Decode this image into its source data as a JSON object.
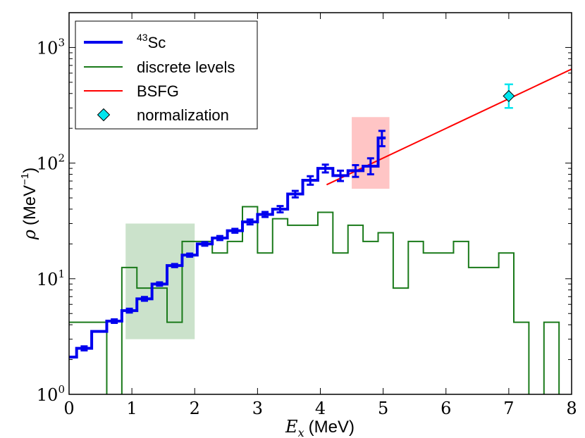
{
  "chart_data": {
    "type": "step",
    "xlabel": {
      "symbol": "E",
      "subscript": "x",
      "unit": "(MeV)"
    },
    "ylabel": {
      "symbol": "ρ",
      "unit_prefix": "(MeV",
      "unit_exp": "−1",
      "unit_suffix": ")"
    },
    "xlim": [
      0,
      8
    ],
    "ylim": [
      1,
      2000
    ],
    "yscale": "log",
    "xticks": [
      "0",
      "1",
      "2",
      "3",
      "4",
      "5",
      "6",
      "7",
      "8"
    ],
    "yticks": [
      {
        "value": 1,
        "base": "10",
        "exp": "0"
      },
      {
        "value": 10,
        "base": "10",
        "exp": "1"
      },
      {
        "value": 100,
        "base": "10",
        "exp": "2"
      },
      {
        "value": 1000,
        "base": "10",
        "exp": "3"
      }
    ],
    "legend": {
      "location": "top-left",
      "entries": [
        {
          "key": "sc43",
          "mass": "43",
          "label": "Sc",
          "color": "#0000ee"
        },
        {
          "key": "discrete",
          "label": "discrete levels",
          "color": "#1a7a1a"
        },
        {
          "key": "bsfg",
          "label": "BSFG",
          "color": "#ff0000"
        },
        {
          "key": "norm",
          "label": "normalization",
          "color": "#00e5ee"
        }
      ]
    },
    "shaded_regions": [
      {
        "name": "lower-normalization-region",
        "x": [
          0.9,
          2.0
        ],
        "y": [
          3,
          30
        ],
        "color": "#2e8b2e",
        "opacity": 0.25
      },
      {
        "name": "upper-normalization-region",
        "x": [
          4.5,
          5.1
        ],
        "y": [
          60,
          250
        ],
        "color": "#ff4040",
        "opacity": 0.3
      }
    ],
    "series": [
      {
        "name": "43Sc",
        "color": "#0000ee",
        "steps": [
          {
            "x0": 0.0,
            "x1": 0.12,
            "y": 2.1
          },
          {
            "x0": 0.12,
            "x1": 0.36,
            "y": 2.5
          },
          {
            "x0": 0.36,
            "x1": 0.6,
            "y": 3.5
          },
          {
            "x0": 0.6,
            "x1": 0.84,
            "y": 4.3
          },
          {
            "x0": 0.84,
            "x1": 1.08,
            "y": 5.3
          },
          {
            "x0": 1.08,
            "x1": 1.32,
            "y": 6.7
          },
          {
            "x0": 1.32,
            "x1": 1.56,
            "y": 9.0
          },
          {
            "x0": 1.56,
            "x1": 1.8,
            "y": 13.0
          },
          {
            "x0": 1.8,
            "x1": 2.04,
            "y": 16.0
          },
          {
            "x0": 2.04,
            "x1": 2.28,
            "y": 20.0
          },
          {
            "x0": 2.28,
            "x1": 2.52,
            "y": 22.5
          },
          {
            "x0": 2.52,
            "x1": 2.76,
            "y": 26.0
          },
          {
            "x0": 2.76,
            "x1": 3.0,
            "y": 31.0
          },
          {
            "x0": 3.0,
            "x1": 3.24,
            "y": 36.0
          },
          {
            "x0": 3.24,
            "x1": 3.48,
            "y": 40.0
          },
          {
            "x0": 3.48,
            "x1": 3.72,
            "y": 54.0
          },
          {
            "x0": 3.72,
            "x1": 3.96,
            "y": 71.0
          },
          {
            "x0": 3.96,
            "x1": 4.2,
            "y": 90.0
          },
          {
            "x0": 4.2,
            "x1": 4.44,
            "y": 78.0
          },
          {
            "x0": 4.44,
            "x1": 4.68,
            "y": 86.0
          },
          {
            "x0": 4.68,
            "x1": 4.92,
            "y": 94.0
          },
          {
            "x0": 4.92,
            "x1": 5.04,
            "y": 165.0
          }
        ],
        "errorbars": [
          {
            "x": 0.24,
            "y": 2.5,
            "lo": 2.4,
            "hi": 2.6
          },
          {
            "x": 0.72,
            "y": 4.3,
            "lo": 4.15,
            "hi": 4.45
          },
          {
            "x": 0.96,
            "y": 5.3,
            "lo": 5.1,
            "hi": 5.5
          },
          {
            "x": 1.2,
            "y": 6.7,
            "lo": 6.45,
            "hi": 6.95
          },
          {
            "x": 1.44,
            "y": 9.0,
            "lo": 8.7,
            "hi": 9.3
          },
          {
            "x": 1.68,
            "y": 13.0,
            "lo": 12.6,
            "hi": 13.4
          },
          {
            "x": 1.92,
            "y": 16.0,
            "lo": 15.5,
            "hi": 16.5
          },
          {
            "x": 2.16,
            "y": 20.0,
            "lo": 19.3,
            "hi": 20.7
          },
          {
            "x": 2.4,
            "y": 22.5,
            "lo": 21.6,
            "hi": 23.4
          },
          {
            "x": 2.64,
            "y": 26.0,
            "lo": 25.0,
            "hi": 27.0
          },
          {
            "x": 2.88,
            "y": 31.0,
            "lo": 29.5,
            "hi": 32.5
          },
          {
            "x": 3.12,
            "y": 36.0,
            "lo": 34.2,
            "hi": 37.8
          },
          {
            "x": 3.36,
            "y": 40.0,
            "lo": 37.5,
            "hi": 42.5
          },
          {
            "x": 3.6,
            "y": 54.0,
            "lo": 50.5,
            "hi": 57.5
          },
          {
            "x": 3.84,
            "y": 71.0,
            "lo": 65.0,
            "hi": 77.0
          },
          {
            "x": 4.08,
            "y": 90.0,
            "lo": 83.0,
            "hi": 97.0
          },
          {
            "x": 4.32,
            "y": 78.0,
            "lo": 70.0,
            "hi": 86.0
          },
          {
            "x": 4.56,
            "y": 86.0,
            "lo": 76.0,
            "hi": 96.0
          },
          {
            "x": 4.8,
            "y": 94.0,
            "lo": 80.0,
            "hi": 110.0
          },
          {
            "x": 4.98,
            "y": 165.0,
            "lo": 140.0,
            "hi": 190.0
          }
        ]
      },
      {
        "name": "discrete levels",
        "color": "#1a7a1a",
        "steps": [
          {
            "x0": 0.0,
            "x1": 0.6,
            "y": 4.2
          },
          {
            "x0": 0.6,
            "x1": 0.84,
            "y": 0.5
          },
          {
            "x0": 0.84,
            "x1": 1.08,
            "y": 12.5
          },
          {
            "x0": 1.08,
            "x1": 1.32,
            "y": 8.3
          },
          {
            "x0": 1.32,
            "x1": 1.56,
            "y": 8.3
          },
          {
            "x0": 1.56,
            "x1": 1.8,
            "y": 4.2
          },
          {
            "x0": 1.8,
            "x1": 2.04,
            "y": 21.0
          },
          {
            "x0": 2.04,
            "x1": 2.28,
            "y": 21.0
          },
          {
            "x0": 2.28,
            "x1": 2.52,
            "y": 16.7
          },
          {
            "x0": 2.52,
            "x1": 2.76,
            "y": 21.0
          },
          {
            "x0": 2.76,
            "x1": 3.0,
            "y": 42.0
          },
          {
            "x0": 3.0,
            "x1": 3.24,
            "y": 16.7
          },
          {
            "x0": 3.24,
            "x1": 3.48,
            "y": 33.0
          },
          {
            "x0": 3.48,
            "x1": 3.72,
            "y": 29.0
          },
          {
            "x0": 3.72,
            "x1": 3.96,
            "y": 29.0
          },
          {
            "x0": 3.96,
            "x1": 4.2,
            "y": 37.5
          },
          {
            "x0": 4.2,
            "x1": 4.44,
            "y": 16.7
          },
          {
            "x0": 4.44,
            "x1": 4.68,
            "y": 29.0
          },
          {
            "x0": 4.68,
            "x1": 4.92,
            "y": 21.0
          },
          {
            "x0": 4.92,
            "x1": 5.16,
            "y": 25.0
          },
          {
            "x0": 5.16,
            "x1": 5.4,
            "y": 8.3
          },
          {
            "x0": 5.4,
            "x1": 5.64,
            "y": 21.0
          },
          {
            "x0": 5.64,
            "x1": 5.88,
            "y": 16.7
          },
          {
            "x0": 5.88,
            "x1": 6.12,
            "y": 16.7
          },
          {
            "x0": 6.12,
            "x1": 6.36,
            "y": 21.0
          },
          {
            "x0": 6.36,
            "x1": 6.6,
            "y": 12.5
          },
          {
            "x0": 6.6,
            "x1": 6.84,
            "y": 12.5
          },
          {
            "x0": 6.84,
            "x1": 7.08,
            "y": 16.7
          },
          {
            "x0": 7.08,
            "x1": 7.32,
            "y": 4.2
          },
          {
            "x0": 7.32,
            "x1": 7.56,
            "y": 0.5
          },
          {
            "x0": 7.56,
            "x1": 7.8,
            "y": 4.2
          },
          {
            "x0": 7.8,
            "x1": 8.0,
            "y": 0.5
          }
        ]
      },
      {
        "name": "BSFG",
        "color": "#ff0000",
        "line": {
          "x": [
            4.1,
            8.0
          ],
          "y": [
            65,
            650
          ]
        }
      },
      {
        "name": "normalization",
        "color": "#00e5ee",
        "points": [
          {
            "x": 7.0,
            "y": 380,
            "lo": 300,
            "hi": 480
          }
        ]
      }
    ]
  }
}
